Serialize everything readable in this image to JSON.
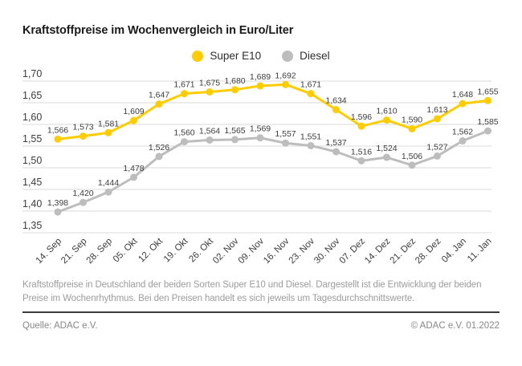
{
  "title": "Kraftstoffpreise im Wochenvergleich in Euro/Liter",
  "legend": [
    {
      "label": "Super E10",
      "color": "#FFCC00"
    },
    {
      "label": "Diesel",
      "color": "#BDBDBD"
    }
  ],
  "chart_data": {
    "type": "line",
    "title": "Kraftstoffpreise im Wochenvergleich in Euro/Liter",
    "xlabel": "",
    "ylabel": "Euro/Liter",
    "categories": [
      "14. Sep",
      "21. Sep",
      "28. Sep",
      "05. Okt",
      "12. Okt",
      "19. Okt",
      "26. Okt",
      "02. Nov",
      "09. Nov",
      "16. Nov",
      "23. Nov",
      "30. Nov",
      "07. Dez",
      "14. Dez",
      "21. Dez",
      "28. Dez",
      "04. Jan",
      "11. Jan"
    ],
    "series": [
      {
        "name": "Super E10",
        "color": "#FFCC00",
        "values": [
          1.566,
          1.573,
          1.581,
          1.609,
          1.647,
          1.671,
          1.675,
          1.68,
          1.689,
          1.692,
          1.671,
          1.634,
          1.596,
          1.61,
          1.59,
          1.613,
          1.648,
          1.655
        ]
      },
      {
        "name": "Diesel",
        "color": "#BDBDBD",
        "values": [
          1.398,
          1.42,
          1.444,
          1.478,
          1.526,
          1.56,
          1.564,
          1.565,
          1.569,
          1.557,
          1.551,
          1.537,
          1.516,
          1.524,
          1.506,
          1.527,
          1.562,
          1.585
        ]
      }
    ],
    "ylim": [
      1.35,
      1.7
    ],
    "ytick_step": 0.05,
    "ytick_labels": [
      "1,35",
      "1,40",
      "1,45",
      "1,50",
      "1,55",
      "1,60",
      "1,65",
      "1,70"
    ],
    "grid": true,
    "legend_position": "top-center",
    "value_label_format": "german-3-decimals"
  },
  "description": "Kraftstoffpreise in Deutschland der beiden Sorten Super E10 und Diesel. Dargestellt ist die Entwicklung der beiden Preise im Wochenrhythmus. Bei den Preisen handelt es sich jeweils um Tagesdurchschnittswerte.",
  "source": "Quelle: ADAC e.V.",
  "copyright": "© ADAC e.V. 01.2022",
  "colors": {
    "super_e10": "#FFCC00",
    "diesel": "#BDBDBD",
    "grid": "#D8D8D8",
    "axis_text": "#3C3C3C",
    "data_label": "#3C3C3C",
    "title_text": "#1A1A1A",
    "muted_text": "#9C9C9C",
    "separator": "#3C3C3C"
  }
}
